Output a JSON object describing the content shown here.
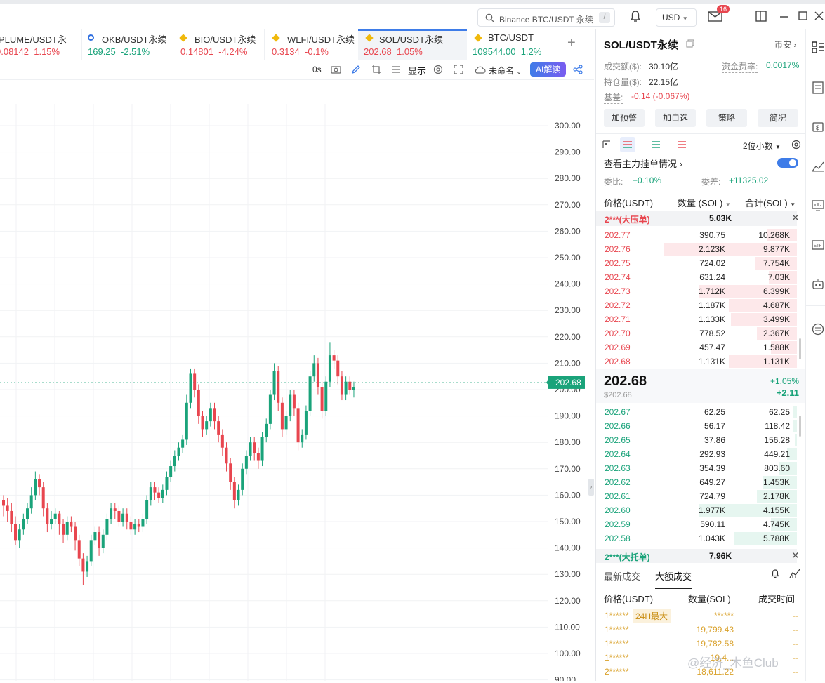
{
  "topbar": {
    "search_placeholder": "Binance BTC/USDT 永续",
    "search_shortcut": "/",
    "currency": "USD",
    "notif_badge": "16"
  },
  "tabs": [
    {
      "name": "PLUME/USDT永",
      "price": "0.08142",
      "change": "1.15%",
      "dir": "up"
    },
    {
      "name": "OKB/USDT永续",
      "price": "169.25",
      "change": "-2.51%",
      "dir": "down"
    },
    {
      "name": "BIO/USDT永续",
      "price": "0.14801",
      "change": "-4.24%",
      "dir": "down"
    },
    {
      "name": "WLFI/USDT永续",
      "price": "0.3134",
      "change": "-0.1%",
      "dir": "down"
    },
    {
      "name": "SOL/USDT永续",
      "price": "202.68",
      "change": "1.05%",
      "dir": "up"
    },
    {
      "name": "BTC/USDT",
      "price": "109544.00",
      "change": "1.2%",
      "dir": "up"
    }
  ],
  "add_tab": "+",
  "chart_toolbar": {
    "interval": "0s",
    "display": "显示",
    "layout_name": "未命名",
    "ai": "AI解读"
  },
  "chart_data": {
    "type": "candlestick",
    "y_ticks": [
      "300.00",
      "290.00",
      "280.00",
      "270.00",
      "260.00",
      "250.00",
      "240.00",
      "230.00",
      "220.00",
      "210.00",
      "200.00",
      "190.00",
      "180.00",
      "170.00",
      "160.00",
      "150.00",
      "140.00",
      "130.00",
      "120.00",
      "110.00",
      "100.00",
      "90.00"
    ],
    "ylim": [
      90,
      300
    ],
    "last_price_label": "202.68",
    "last_price": 202.68,
    "candles": [
      [
        158,
        156,
        160,
        152
      ],
      [
        156,
        154,
        159,
        150
      ],
      [
        154,
        149,
        157,
        146
      ],
      [
        149,
        143,
        152,
        141
      ],
      [
        143,
        147,
        149,
        140
      ],
      [
        147,
        151,
        153,
        145
      ],
      [
        151,
        155,
        157,
        149
      ],
      [
        155,
        160,
        163,
        153
      ],
      [
        160,
        166,
        169,
        158
      ],
      [
        166,
        163,
        168,
        160
      ],
      [
        163,
        155,
        165,
        152
      ],
      [
        155,
        149,
        157,
        146
      ],
      [
        149,
        151,
        154,
        147
      ],
      [
        151,
        153,
        155,
        149
      ],
      [
        153,
        149,
        154,
        145
      ],
      [
        149,
        145,
        151,
        142
      ],
      [
        145,
        150,
        152,
        143
      ],
      [
        150,
        148,
        152,
        146
      ],
      [
        148,
        143,
        150,
        139
      ],
      [
        143,
        136,
        145,
        133
      ],
      [
        136,
        131,
        138,
        126
      ],
      [
        131,
        135,
        137,
        129
      ],
      [
        135,
        143,
        145,
        133
      ],
      [
        143,
        146,
        148,
        141
      ],
      [
        146,
        140,
        148,
        137
      ],
      [
        140,
        145,
        147,
        138
      ],
      [
        145,
        151,
        153,
        143
      ],
      [
        151,
        155,
        157,
        149
      ],
      [
        155,
        154,
        157,
        151
      ],
      [
        154,
        150,
        156,
        148
      ],
      [
        150,
        153,
        155,
        148
      ],
      [
        153,
        150,
        155,
        147
      ],
      [
        150,
        147,
        152,
        145
      ],
      [
        147,
        149,
        151,
        145
      ],
      [
        149,
        148,
        151,
        146
      ],
      [
        148,
        151,
        153,
        146
      ],
      [
        151,
        158,
        160,
        149
      ],
      [
        158,
        163,
        165,
        156
      ],
      [
        163,
        161,
        165,
        158
      ],
      [
        161,
        159,
        163,
        157
      ],
      [
        159,
        162,
        164,
        157
      ],
      [
        162,
        167,
        169,
        160
      ],
      [
        167,
        171,
        173,
        165
      ],
      [
        171,
        175,
        177,
        169
      ],
      [
        175,
        178,
        180,
        173
      ],
      [
        178,
        181,
        183,
        176
      ],
      [
        181,
        195,
        198,
        179
      ],
      [
        195,
        206,
        208,
        193
      ],
      [
        206,
        200,
        208,
        197
      ],
      [
        200,
        190,
        202,
        187
      ],
      [
        190,
        185,
        192,
        182
      ],
      [
        185,
        188,
        190,
        183
      ],
      [
        188,
        193,
        195,
        186
      ],
      [
        193,
        188,
        195,
        185
      ],
      [
        188,
        183,
        190,
        180
      ],
      [
        183,
        178,
        185,
        175
      ],
      [
        178,
        172,
        180,
        169
      ],
      [
        172,
        165,
        174,
        162
      ],
      [
        165,
        158,
        167,
        155
      ],
      [
        158,
        162,
        164,
        156
      ],
      [
        162,
        170,
        172,
        160
      ],
      [
        170,
        175,
        177,
        168
      ],
      [
        175,
        180,
        182,
        173
      ],
      [
        180,
        176,
        182,
        173
      ],
      [
        176,
        173,
        178,
        170
      ],
      [
        173,
        182,
        184,
        171
      ],
      [
        182,
        187,
        189,
        180
      ],
      [
        187,
        198,
        200,
        185
      ],
      [
        198,
        207,
        210,
        196
      ],
      [
        207,
        195,
        209,
        192
      ],
      [
        195,
        185,
        197,
        182
      ],
      [
        185,
        190,
        192,
        183
      ],
      [
        190,
        198,
        200,
        188
      ],
      [
        198,
        193,
        200,
        190
      ],
      [
        193,
        180,
        195,
        177
      ],
      [
        180,
        183,
        185,
        178
      ],
      [
        183,
        192,
        194,
        181
      ],
      [
        192,
        205,
        207,
        190
      ],
      [
        205,
        210,
        213,
        203
      ],
      [
        210,
        201,
        212,
        198
      ],
      [
        201,
        192,
        203,
        189
      ],
      [
        192,
        203,
        205,
        190
      ],
      [
        203,
        213,
        218,
        201
      ],
      [
        213,
        211,
        215,
        208
      ],
      [
        211,
        205,
        213,
        202
      ],
      [
        205,
        198,
        207,
        196
      ],
      [
        198,
        203,
        205,
        196
      ],
      [
        203,
        200,
        205,
        198
      ],
      [
        200,
        201,
        203,
        197
      ]
    ]
  },
  "panel": {
    "symbol": "SOL/USDT永续",
    "exchange": "币安",
    "stats": {
      "turnover_label": "成交额($):",
      "turnover": "30.10亿",
      "funding_label": "资金费率:",
      "funding": "0.0017%",
      "oi_label": "持仓量($):",
      "oi": "22.15亿",
      "basis_label": "基差:",
      "basis": "-0.14 (-0.067%)"
    },
    "buttons": [
      "加预警",
      "加自选",
      "策略",
      "简况"
    ],
    "decimals": "2位小数",
    "main_orders": "查看主力挂单情况",
    "ratio_label": "委比:",
    "ratio": "+0.10%",
    "diff_label": "委差:",
    "diff": "+11325.02",
    "cols": {
      "price": "价格(USDT)",
      "amount": "数量 (SOL)",
      "total": "合计(SOL)"
    },
    "big_ask_label": "2***(大压单)",
    "big_ask_amount": "5.03K",
    "asks": [
      {
        "price": "202.77",
        "amount": "390.75",
        "total": "10.268K",
        "fill": 0.15
      },
      {
        "price": "202.76",
        "amount": "2.123K",
        "total": "9.877K",
        "fill": 0.66
      },
      {
        "price": "202.75",
        "amount": "724.02",
        "total": "7.754K",
        "fill": 0.21
      },
      {
        "price": "202.74",
        "amount": "631.24",
        "total": "7.03K",
        "fill": 0.14
      },
      {
        "price": "202.73",
        "amount": "1.712K",
        "total": "6.399K",
        "fill": 0.49
      },
      {
        "price": "202.72",
        "amount": "1.187K",
        "total": "4.687K",
        "fill": 0.34
      },
      {
        "price": "202.71",
        "amount": "1.133K",
        "total": "3.499K",
        "fill": 0.33
      },
      {
        "price": "202.70",
        "amount": "778.52",
        "total": "2.367K",
        "fill": 0.2
      },
      {
        "price": "202.69",
        "amount": "457.47",
        "total": "1.588K",
        "fill": 0.13
      },
      {
        "price": "202.68",
        "amount": "1.131K",
        "total": "1.131K",
        "fill": 0.34
      }
    ],
    "last": "202.68",
    "last_usd": "$202.68",
    "change_pct": "+1.05%",
    "change_abs": "+2.11",
    "bids": [
      {
        "price": "202.67",
        "amount": "62.25",
        "total": "62.25",
        "fill": 0.02
      },
      {
        "price": "202.66",
        "amount": "56.17",
        "total": "118.42",
        "fill": 0.02
      },
      {
        "price": "202.65",
        "amount": "37.86",
        "total": "156.28",
        "fill": 0.01
      },
      {
        "price": "202.64",
        "amount": "292.93",
        "total": "449.21",
        "fill": 0.05
      },
      {
        "price": "202.63",
        "amount": "354.39",
        "total": "803.60",
        "fill": 0.09
      },
      {
        "price": "202.62",
        "amount": "649.27",
        "total": "1.453K",
        "fill": 0.17
      },
      {
        "price": "202.61",
        "amount": "724.79",
        "total": "2.178K",
        "fill": 0.2
      },
      {
        "price": "202.60",
        "amount": "1.977K",
        "total": "4.155K",
        "fill": 0.49
      },
      {
        "price": "202.59",
        "amount": "590.11",
        "total": "4.745K",
        "fill": 0.13
      },
      {
        "price": "202.58",
        "amount": "1.043K",
        "total": "5.788K",
        "fill": 0.31
      }
    ],
    "big_bid_label": "2***(大托单)",
    "big_bid_amount": "7.96K",
    "trade_tabs": [
      "最新成交",
      "大额成交"
    ],
    "trade_cols": {
      "price": "价格(USDT)",
      "amount": "数量(SOL)",
      "time": "成交时间"
    },
    "trades": [
      {
        "price": "1******",
        "tag": "24H最大",
        "amount": "******",
        "time": "--"
      },
      {
        "price": "1******",
        "tag": "",
        "amount": "19,799.43",
        "time": "--"
      },
      {
        "price": "1******",
        "tag": "",
        "amount": "19,782.58",
        "time": "--"
      },
      {
        "price": "1******",
        "tag": "",
        "amount": "19,4...",
        "time": "--"
      },
      {
        "price": "2******",
        "tag": "",
        "amount": "18,611.22",
        "time": "--"
      }
    ],
    "watermark": "@经济_木鱼Club"
  },
  "colors": {
    "up": "#1aa37a",
    "down": "#e8464f",
    "accent": "#3e7ce8"
  }
}
